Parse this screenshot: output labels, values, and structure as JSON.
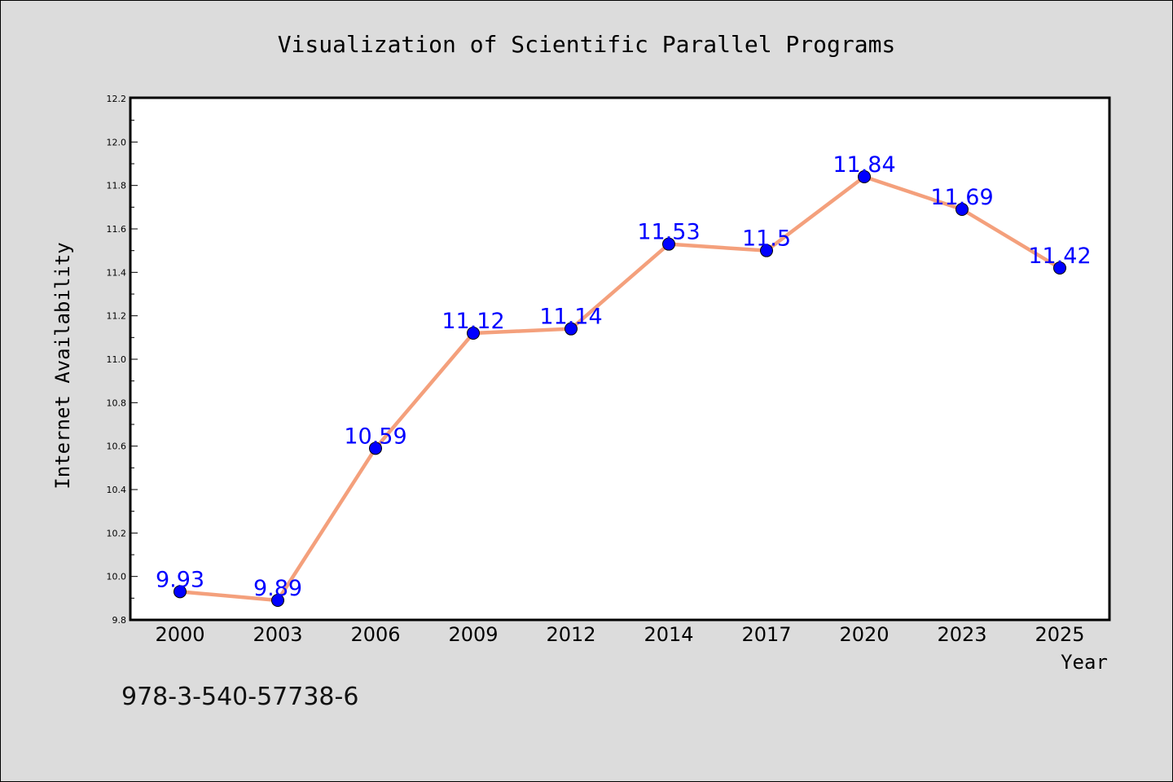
{
  "chart_data": {
    "type": "line",
    "title": "Visualization of Scientific Parallel Programs",
    "xlabel": "Year",
    "ylabel": "Internet Availability",
    "categories": [
      "2000",
      "2003",
      "2006",
      "2009",
      "2012",
      "2014",
      "2017",
      "2020",
      "2023",
      "2025"
    ],
    "series": [
      {
        "values": [
          9.93,
          9.89,
          10.59,
          11.12,
          11.14,
          11.53,
          11.5,
          11.84,
          11.69,
          11.42
        ],
        "data_labels": [
          "9.93",
          "9.89",
          "10.59",
          "11.12",
          "11.14",
          "11.53",
          "11.5",
          "11.84",
          "11.69",
          "11.42"
        ],
        "line_color": "#f4a07c",
        "marker_color": "#0000ff"
      }
    ],
    "ylim": [
      9.8,
      12.2
    ],
    "yticks": [
      "9.8",
      "10.0",
      "10.2",
      "10.4",
      "10.6",
      "10.8",
      "11.0",
      "11.2",
      "11.4",
      "11.6",
      "11.8",
      "12.0",
      "12.2"
    ],
    "grid": false,
    "legend": "none"
  },
  "annotation": "978-3-540-57738-6",
  "colors": {
    "background": "#dcdcdc",
    "plot_background": "#ffffff",
    "label_color": "#0000ff"
  }
}
